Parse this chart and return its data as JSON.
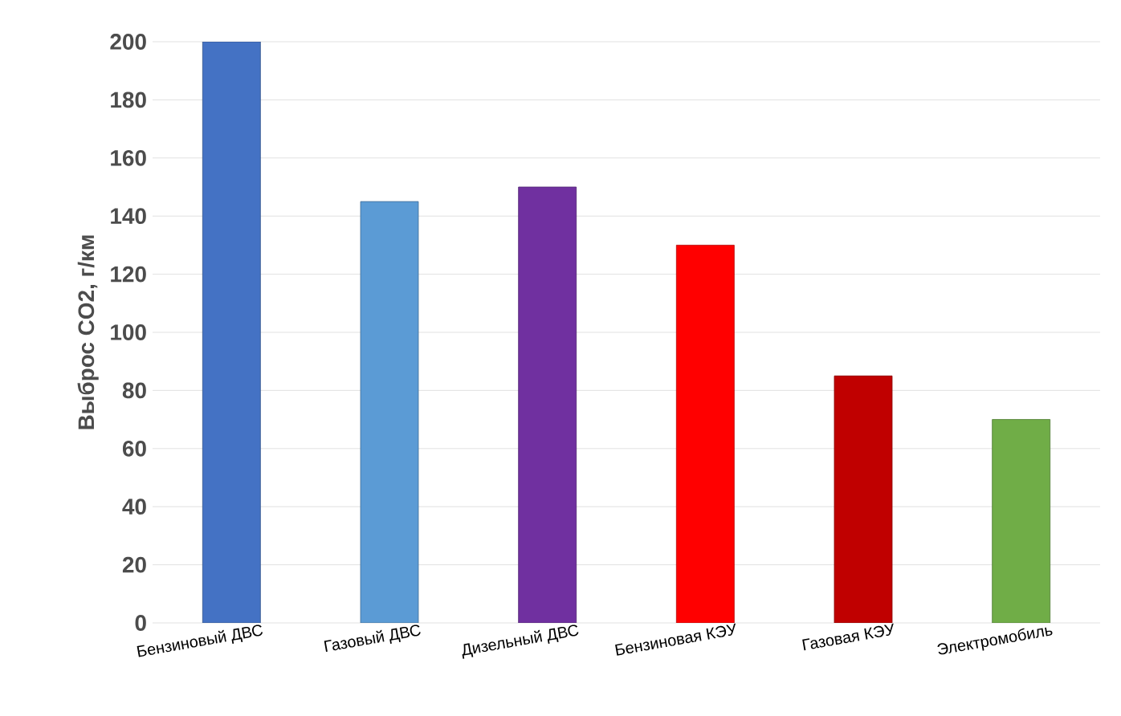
{
  "chart_data": {
    "type": "bar",
    "ylabel": "Выброс CO2, г/км",
    "categories": [
      "Бензиновый ДВС",
      "Газовый ДВС",
      "Дизельный ДВС",
      "Бензиновая КЭУ",
      "Газовая КЭУ",
      "Электромобиль"
    ],
    "values": [
      200,
      145,
      150,
      130,
      85,
      70
    ],
    "colors": [
      "#4472c4",
      "#5b9bd5",
      "#7030a0",
      "#ff0000",
      "#c00000",
      "#70ad47"
    ],
    "ylim": [
      0,
      200
    ],
    "yticks": [
      0,
      20,
      40,
      60,
      80,
      100,
      120,
      140,
      160,
      180,
      200
    ],
    "grid": "y"
  }
}
